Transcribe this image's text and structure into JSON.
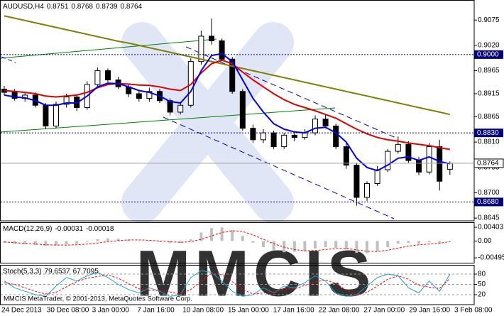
{
  "chart_data": [
    {
      "type": "candlestick",
      "symbol": "AUDUSD,H4",
      "color": "#000000",
      "open": [
        0.8925,
        0.8918,
        0.8905,
        0.8912,
        0.889,
        0.8845,
        0.8892,
        0.8908,
        0.8885,
        0.8935,
        0.8965,
        0.8945,
        0.893,
        0.8915,
        0.8905,
        0.892,
        0.89,
        0.8875,
        0.889,
        0.8985,
        0.904,
        0.903,
        0.899,
        0.892,
        0.884,
        0.8815,
        0.883,
        0.88,
        0.8825,
        0.882,
        0.883,
        0.886,
        0.8845,
        0.88,
        0.876,
        0.869,
        0.872,
        0.875,
        0.879,
        0.8805,
        0.877,
        0.8745,
        0.88,
        0.8751
      ],
      "high": [
        0.8932,
        0.8925,
        0.8918,
        0.8918,
        0.8895,
        0.8898,
        0.8915,
        0.8912,
        0.8942,
        0.8972,
        0.897,
        0.8952,
        0.8935,
        0.8922,
        0.8928,
        0.8925,
        0.8905,
        0.8897,
        0.8992,
        0.9052,
        0.9078,
        0.9035,
        0.8995,
        0.8925,
        0.8848,
        0.8838,
        0.8835,
        0.883,
        0.8832,
        0.8838,
        0.8868,
        0.887,
        0.885,
        0.8808,
        0.8765,
        0.8725,
        0.8758,
        0.8795,
        0.8822,
        0.8812,
        0.8778,
        0.8808,
        0.8815,
        0.8768
      ],
      "low": [
        0.8912,
        0.89,
        0.8898,
        0.8885,
        0.8838,
        0.884,
        0.8885,
        0.8878,
        0.888,
        0.893,
        0.894,
        0.8925,
        0.8908,
        0.8898,
        0.8898,
        0.8895,
        0.8868,
        0.887,
        0.8885,
        0.8978,
        0.9022,
        0.8985,
        0.8915,
        0.8835,
        0.8808,
        0.8808,
        0.8795,
        0.8795,
        0.8812,
        0.8815,
        0.8825,
        0.884,
        0.8795,
        0.8752,
        0.8672,
        0.8682,
        0.8715,
        0.8745,
        0.8785,
        0.8765,
        0.8738,
        0.874,
        0.8705,
        0.8739
      ],
      "close": [
        0.8918,
        0.8905,
        0.8912,
        0.889,
        0.8845,
        0.8892,
        0.8908,
        0.8885,
        0.8935,
        0.8965,
        0.8945,
        0.893,
        0.8915,
        0.8905,
        0.892,
        0.89,
        0.8875,
        0.889,
        0.8985,
        0.904,
        0.903,
        0.899,
        0.892,
        0.884,
        0.8815,
        0.883,
        0.88,
        0.8825,
        0.882,
        0.883,
        0.886,
        0.8845,
        0.88,
        0.876,
        0.869,
        0.872,
        0.875,
        0.879,
        0.8805,
        0.877,
        0.8745,
        0.88,
        0.8725,
        0.8764
      ],
      "overlays": [
        {
          "color": "#808000",
          "values": [
            0.9084,
            0.9079,
            0.9074,
            0.9069,
            0.9064,
            0.9059,
            0.9054,
            0.9049,
            0.9044,
            0.9039,
            0.9034,
            0.9029,
            0.9025,
            0.902,
            0.9015,
            0.901,
            0.9005,
            0.9,
            0.8995,
            0.899,
            0.8985,
            0.898,
            0.8975,
            0.897,
            0.8965,
            0.896,
            0.8955,
            0.895,
            0.8945,
            0.894,
            0.8935,
            0.893,
            0.8925,
            0.892,
            0.8915,
            0.891,
            0.8905,
            0.89,
            0.8895,
            0.889,
            0.8885,
            0.888,
            0.8875,
            0.887
          ]
        },
        {
          "color": "#e00000",
          "values": [
            0.8922,
            0.892,
            0.8918,
            0.8915,
            0.891,
            0.8908,
            0.891,
            0.8912,
            0.8918,
            0.8928,
            0.8935,
            0.8937,
            0.8936,
            0.8934,
            0.8933,
            0.893,
            0.8925,
            0.8922,
            0.8935,
            0.896,
            0.898,
            0.8988,
            0.898,
            0.8962,
            0.8945,
            0.893,
            0.8915,
            0.8902,
            0.8892,
            0.8885,
            0.8878,
            0.887,
            0.8862,
            0.885,
            0.8838,
            0.8828,
            0.882,
            0.8815,
            0.8812,
            0.8808,
            0.8805,
            0.8802,
            0.8798,
            0.8794
          ]
        },
        {
          "color": "#0000ee",
          "values": [
            0.8912,
            0.8908,
            0.8906,
            0.89,
            0.889,
            0.889,
            0.8895,
            0.8895,
            0.891,
            0.893,
            0.8938,
            0.8937,
            0.893,
            0.8922,
            0.8918,
            0.891,
            0.8898,
            0.8895,
            0.892,
            0.8965,
            0.8998,
            0.9002,
            0.8985,
            0.8945,
            0.8905,
            0.8875,
            0.885,
            0.8838,
            0.8832,
            0.883,
            0.884,
            0.8842,
            0.883,
            0.881,
            0.8775,
            0.8755,
            0.8748,
            0.876,
            0.8775,
            0.8778,
            0.877,
            0.8778,
            0.8768,
            0.8763
          ]
        }
      ],
      "ylim": [
        0.8639,
        0.9117
      ],
      "yticks": [
        0.9075,
        {
          "value": 0.902,
          "label": "0.9020"
        },
        0.8965,
        0.8915,
        0.8865,
        {
          "value": 0.881,
          "label": "0.8810"
        },
        0.8755,
        {
          "value": 0.87,
          "label": "0.8700"
        },
        0.8645
      ],
      "levels": [
        {
          "value": 0.9,
          "label": "0.9000"
        },
        {
          "value": 0.883,
          "label": "0.8830"
        },
        {
          "value": 0.868,
          "label": "0.8680"
        }
      ],
      "level_color": "#000080"
    },
    {
      "type": "macd",
      "title": "MACD(12,26,9)",
      "color": "#c0c0c0",
      "signal_color": "#ff0000",
      "values": [
        -0.0005,
        -0.0008,
        -0.001,
        -0.0012,
        -0.0015,
        -0.0013,
        -0.001,
        -0.0008,
        -0.0002,
        0.0005,
        0.0008,
        0.0007,
        0.0004,
        0.0001,
        -0.0001,
        -0.0003,
        -0.0006,
        -0.0006,
        0.0005,
        0.0025,
        0.0038,
        0.004,
        0.0032,
        0.0015,
        -0.0005,
        -0.0018,
        -0.0028,
        -0.0033,
        -0.0032,
        -0.003,
        -0.0022,
        -0.0018,
        -0.002,
        -0.0025,
        -0.0035,
        -0.0036,
        -0.003,
        -0.0018,
        -0.0008,
        -0.0006,
        -0.0008,
        -0.0004,
        -0.0006,
        -0.00031
      ],
      "signal": [
        -0.0003,
        -0.0005,
        -0.0007,
        -0.0009,
        -0.0011,
        -0.0012,
        -0.0012,
        -0.0011,
        -0.0009,
        -0.0006,
        -0.0002,
        0.0001,
        0.0003,
        0.0003,
        0.0002,
        0,
        -0.0002,
        -0.0004,
        -0.0002,
        0.0005,
        0.0015,
        0.0025,
        0.003,
        0.0028,
        0.0018,
        0.0005,
        -0.0008,
        -0.0018,
        -0.0025,
        -0.0029,
        -0.0028,
        -0.0025,
        -0.0022,
        -0.0022,
        -0.0026,
        -0.003,
        -0.0031,
        -0.0027,
        -0.0021,
        -0.0015,
        -0.0011,
        -0.0009,
        -0.0007,
        -0.00018
      ],
      "ylim": [
        -0.0066,
        0.0053
      ],
      "yticks": [
        0.00403,
        {
          "value": 0,
          "label": "0.00"
        },
        -0.00495
      ]
    },
    {
      "type": "stoch",
      "title": "Stoch(5,3,3)",
      "color": "#20a0c8",
      "signal_color": "#ff0000",
      "grid": true,
      "values": [
        60,
        40,
        30,
        20,
        15,
        45,
        70,
        60,
        75,
        85,
        70,
        50,
        35,
        25,
        40,
        30,
        15,
        20,
        70,
        90,
        85,
        60,
        30,
        15,
        20,
        40,
        25,
        45,
        40,
        55,
        75,
        60,
        25,
        15,
        20,
        45,
        70,
        80,
        75,
        40,
        25,
        60,
        30,
        79.6537
      ],
      "signal": [
        55,
        50,
        40,
        30,
        22,
        27,
        43,
        58,
        68,
        73,
        77,
        68,
        52,
        37,
        33,
        32,
        28,
        22,
        35,
        60,
        82,
        78,
        58,
        35,
        22,
        25,
        28,
        37,
        37,
        47,
        57,
        63,
        53,
        33,
        20,
        27,
        45,
        65,
        75,
        65,
        47,
        42,
        38,
        67.7095
      ],
      "ylim": [
        -9,
        104.8
      ],
      "yticks": [
        80,
        50,
        20
      ]
    }
  ],
  "time_axis": [
    "24 Dec 2013",
    "30 Dec 08:00",
    "3 Jan 00:00",
    "7 Jan 16:00",
    "10 Jan 08:00",
    "15 Jan 00:00",
    "17 Jan 16:00",
    "22 Jan 08:00",
    "27 Jan 00:00",
    "29 Jan 16:00",
    "3 Feb 08:00"
  ],
  "watermark": "MMCIS",
  "footer": "MMCIS MetaTrader, © 2001-2013, MetaQuotes Software Corp."
}
